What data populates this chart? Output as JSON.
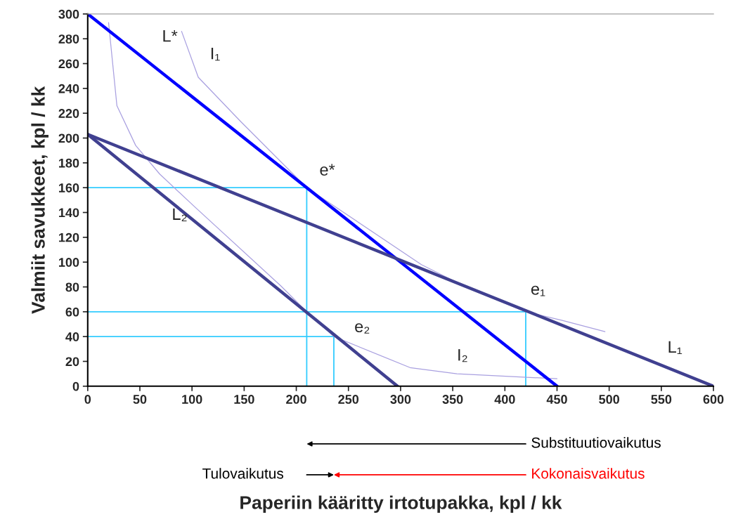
{
  "chart_data": {
    "type": "line",
    "xlabel": "Paperiin kääritty irtotupakka, kpl / kk",
    "ylabel": "Valmiit savukkeet, kpl / kk",
    "xlim": [
      0,
      600
    ],
    "ylim": [
      0,
      300
    ],
    "xticks": [
      0,
      50,
      100,
      150,
      200,
      250,
      300,
      350,
      400,
      450,
      500,
      550,
      600
    ],
    "yticks": [
      0,
      20,
      40,
      60,
      80,
      100,
      120,
      140,
      160,
      180,
      200,
      220,
      240,
      260,
      280,
      300
    ],
    "grid": false,
    "legend": false,
    "marker": "none",
    "line_style": "solid",
    "series": [
      {
        "color": "#33ccff",
        "x": [
          0,
          210,
          210
        ],
        "values": [
          160,
          160,
          0
        ]
      },
      {
        "color": "#33ccff",
        "x": [
          0,
          420,
          420
        ],
        "values": [
          60,
          60,
          0
        ]
      },
      {
        "color": "#33ccff",
        "x": [
          0,
          236,
          236
        ],
        "values": [
          40,
          40,
          0
        ]
      },
      {
        "color": "#a9a0e0",
        "x": [
          90,
          106,
          147,
          210,
          320,
          365,
          420,
          455,
          496
        ],
        "values": [
          286,
          249,
          213,
          160,
          98,
          79,
          60,
          53,
          44
        ]
      },
      {
        "color": "#a9a0e0",
        "x": [
          20,
          28,
          46,
          69,
          102,
          185,
          210,
          236,
          309,
          354,
          450
        ],
        "values": [
          293,
          226,
          194,
          171,
          145,
          81,
          60,
          40,
          15,
          10,
          6
        ]
      },
      {
        "color": "#0000ff",
        "x": [
          0,
          450
        ],
        "values": [
          300,
          0
        ]
      },
      {
        "color": "#404090",
        "x": [
          0,
          600
        ],
        "values": [
          203,
          0
        ]
      },
      {
        "color": "#404090",
        "x": [
          0,
          297
        ],
        "values": [
          203,
          0
        ]
      }
    ],
    "annotations": [
      {
        "text": "L*",
        "x": 60,
        "y": 260
      },
      {
        "text": "I₁",
        "x": 106,
        "y": 249
      },
      {
        "text": "e*",
        "x": 210,
        "y": 160
      },
      {
        "text": "L₂",
        "x": 60,
        "y": 162
      },
      {
        "text": "e₁",
        "x": 420,
        "y": 60
      },
      {
        "text": "e₂",
        "x": 236,
        "y": 40
      },
      {
        "text": "I₂",
        "x": 354,
        "y": 10
      },
      {
        "text": "L₁",
        "x": 540,
        "y": 20.3
      },
      "Substituutiovaikutus",
      "Tulovaikutus",
      "Kokonaisvaikutus"
    ]
  }
}
